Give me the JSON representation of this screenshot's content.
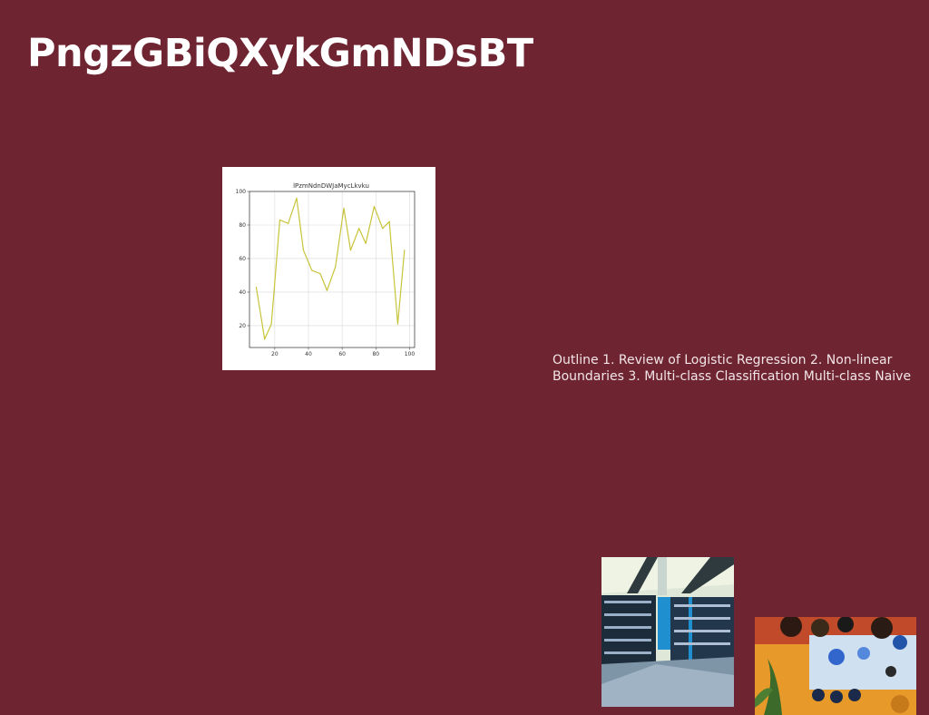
{
  "slide": {
    "title": "PngzGBiQXykGmNDsBT",
    "body_text": "Outline 1. Review of Logistic Regression 2. Non-linear Boundaries 3. Multi-class Classification Multi-class Naive"
  },
  "colors": {
    "background": "#6e2431",
    "line": "#c8c43a",
    "text": "#ffffff"
  },
  "images": {
    "library_photo": "library-bookshelves-photo",
    "abstract_photo": "colorful-abstract-photo"
  },
  "chart_data": {
    "type": "line",
    "title": "lPzmNdnDWJaMycLkvku",
    "xlabel": "",
    "ylabel": "",
    "xlim": [
      5,
      103
    ],
    "ylim": [
      7,
      100
    ],
    "grid": true,
    "x_ticks": [
      20,
      40,
      60,
      80,
      100
    ],
    "y_ticks": [
      20,
      40,
      60,
      80,
      100
    ],
    "x": [
      9,
      14,
      18,
      23,
      28,
      33,
      37,
      42,
      47,
      51,
      56,
      61,
      65,
      70,
      74,
      79,
      84,
      88,
      93,
      97
    ],
    "series": [
      {
        "values": [
          43,
          12,
          21,
          83,
          81,
          96,
          65,
          53,
          51,
          41,
          55,
          90,
          65,
          78,
          69,
          91,
          78,
          82,
          21,
          65
        ]
      }
    ]
  }
}
